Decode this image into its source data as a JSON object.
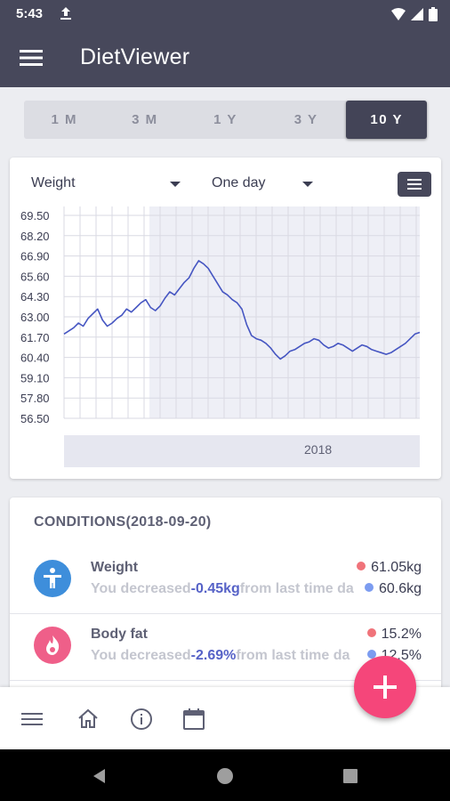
{
  "status": {
    "time": "5:43"
  },
  "app": {
    "title": "DietViewer"
  },
  "ranges": [
    {
      "label": "1 M",
      "active": false
    },
    {
      "label": "3 M",
      "active": false
    },
    {
      "label": "1 Y",
      "active": false
    },
    {
      "label": "3 Y",
      "active": false
    },
    {
      "label": "10 Y",
      "active": true
    }
  ],
  "chart_controls": {
    "metric": "Weight",
    "interval": "One day"
  },
  "chart_data": {
    "type": "line",
    "yticks": [
      "69.50",
      "68.20",
      "66.90",
      "65.60",
      "64.30",
      "63.00",
      "61.70",
      "60.40",
      "59.10",
      "57.80",
      "56.50"
    ],
    "ylim": [
      56.5,
      69.5
    ],
    "xlabel_band": "2018",
    "grid": true,
    "series": [
      {
        "color": "#4656C2",
        "values": [
          61.9,
          62.1,
          62.3,
          62.6,
          62.4,
          62.9,
          63.2,
          63.5,
          62.8,
          62.4,
          62.6,
          62.9,
          63.1,
          63.5,
          63.3,
          63.6,
          63.9,
          64.1,
          63.6,
          63.4,
          63.7,
          64.2,
          64.6,
          64.4,
          64.8,
          65.2,
          65.5,
          66.1,
          66.6,
          66.4,
          66.1,
          65.6,
          65.1,
          64.6,
          64.4,
          64.1,
          63.9,
          63.5,
          62.5,
          61.8,
          61.6,
          61.5,
          61.3,
          61.0,
          60.6,
          60.3,
          60.5,
          60.8,
          60.9,
          61.1,
          61.3,
          61.4,
          61.6,
          61.5,
          61.2,
          61.0,
          61.1,
          61.3,
          61.2,
          61.0,
          60.8,
          61.0,
          61.2,
          61.1,
          60.9,
          60.8,
          60.7,
          60.6,
          60.7,
          60.9,
          61.1,
          61.3,
          61.6,
          61.9,
          62.0
        ]
      }
    ]
  },
  "conditions": {
    "title": "CONDITIONS(2018-09-20)",
    "rows": [
      {
        "name": "Weight",
        "desc_prefix": "You decreased",
        "delta": "-0.45kg",
        "desc_suffix": "from last time da",
        "value1": "61.05kg",
        "value2": "60.6kg",
        "icon": "person-icon",
        "color": "#3E8EDB"
      },
      {
        "name": "Body fat",
        "desc_prefix": "You decreased",
        "delta": "-2.69%",
        "desc_suffix": "from last time da",
        "value1": "15.2%",
        "value2": "12.5%",
        "icon": "flame-icon",
        "color": "#EF5F89"
      }
    ]
  },
  "colors": {
    "appbar": "#47485B",
    "accent": "#4656C2",
    "fab": "#F5467A",
    "dot_red": "#F0737A",
    "dot_blue": "#7C9CF0"
  }
}
